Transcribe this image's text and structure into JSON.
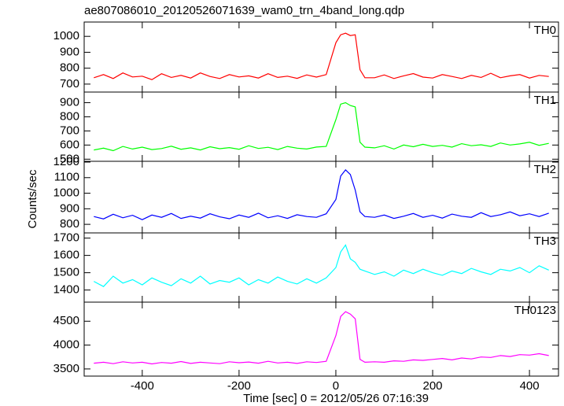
{
  "chart_data": {
    "type": "line",
    "title": "ae807086010_20120526071639_wam0_trn_4band_long.qdp",
    "x_label": "Time [sec] 0 = 2012/05/26 07:16:39",
    "y_label": "Counts/sec",
    "xlim": [
      -520,
      460
    ],
    "xticks": [
      -400,
      -200,
      0,
      200,
      400
    ],
    "x": [
      -500,
      -480,
      -460,
      -440,
      -420,
      -400,
      -380,
      -360,
      -340,
      -320,
      -300,
      -280,
      -260,
      -240,
      -220,
      -200,
      -180,
      -160,
      -140,
      -120,
      -100,
      -80,
      -60,
      -40,
      -20,
      0,
      10,
      20,
      30,
      40,
      50,
      60,
      80,
      100,
      120,
      140,
      160,
      180,
      200,
      220,
      240,
      260,
      280,
      300,
      320,
      340,
      360,
      380,
      400,
      420,
      440
    ],
    "series": [
      {
        "name": "TH0",
        "color": "#ff0000",
        "ylim": [
          650,
          1090
        ],
        "yticks": [
          700,
          800,
          900,
          1000
        ],
        "values": [
          740,
          760,
          735,
          770,
          745,
          750,
          728,
          765,
          742,
          755,
          738,
          770,
          748,
          735,
          760,
          745,
          752,
          738,
          765,
          742,
          750,
          736,
          758,
          744,
          760,
          960,
          1010,
          1020,
          1005,
          1010,
          790,
          740,
          740,
          758,
          735,
          752,
          766,
          744,
          738,
          760,
          748,
          735,
          755,
          742,
          768,
          740,
          752,
          760,
          738,
          755,
          748
        ]
      },
      {
        "name": "TH1",
        "color": "#00ff00",
        "ylim": [
          485,
          975
        ],
        "yticks": [
          500,
          600,
          700,
          800,
          900
        ],
        "values": [
          565,
          578,
          560,
          590,
          572,
          585,
          568,
          575,
          592,
          570,
          580,
          565,
          588,
          574,
          582,
          570,
          595,
          576,
          584,
          568,
          590,
          578,
          572,
          586,
          590,
          780,
          890,
          900,
          880,
          870,
          620,
          585,
          580,
          595,
          572,
          600,
          588,
          605,
          590,
          598,
          585,
          610,
          595,
          602,
          590,
          615,
          600,
          608,
          620,
          598,
          612
        ]
      },
      {
        "name": "TH2",
        "color": "#0000ff",
        "ylim": [
          745,
          1205
        ],
        "yticks": [
          800,
          900,
          1000,
          1100,
          1200
        ],
        "values": [
          850,
          835,
          865,
          842,
          858,
          830,
          860,
          845,
          870,
          838,
          852,
          840,
          868,
          848,
          836,
          860,
          845,
          872,
          842,
          855,
          838,
          862,
          850,
          845,
          868,
          960,
          1110,
          1150,
          1120,
          1020,
          880,
          850,
          845,
          860,
          838,
          852,
          870,
          845,
          858,
          840,
          866,
          852,
          845,
          875,
          850,
          862,
          880,
          855,
          868,
          850,
          872
        ]
      },
      {
        "name": "TH3",
        "color": "#00ffff",
        "ylim": [
          1330,
          1730
        ],
        "yticks": [
          1400,
          1500,
          1600,
          1700
        ],
        "values": [
          1450,
          1420,
          1480,
          1440,
          1460,
          1430,
          1470,
          1445,
          1425,
          1465,
          1440,
          1480,
          1435,
          1455,
          1445,
          1470,
          1430,
          1460,
          1440,
          1475,
          1450,
          1435,
          1465,
          1440,
          1470,
          1530,
          1620,
          1660,
          1580,
          1560,
          1520,
          1510,
          1490,
          1505,
          1480,
          1515,
          1495,
          1520,
          1500,
          1485,
          1510,
          1495,
          1525,
          1505,
          1490,
          1520,
          1510,
          1530,
          1500,
          1540,
          1515
        ]
      },
      {
        "name": "TH0123",
        "color": "#ff00ff",
        "ylim": [
          3350,
          4900
        ],
        "yticks": [
          3500,
          4000,
          4500
        ],
        "values": [
          3620,
          3640,
          3610,
          3650,
          3625,
          3640,
          3605,
          3635,
          3620,
          3655,
          3615,
          3640,
          3625,
          3610,
          3650,
          3630,
          3645,
          3620,
          3660,
          3625,
          3640,
          3615,
          3650,
          3635,
          3660,
          4200,
          4600,
          4700,
          4650,
          4550,
          3700,
          3640,
          3650,
          3640,
          3670,
          3660,
          3690,
          3680,
          3700,
          3720,
          3690,
          3730,
          3710,
          3750,
          3740,
          3780,
          3760,
          3800,
          3790,
          3820,
          3780
        ]
      }
    ]
  }
}
